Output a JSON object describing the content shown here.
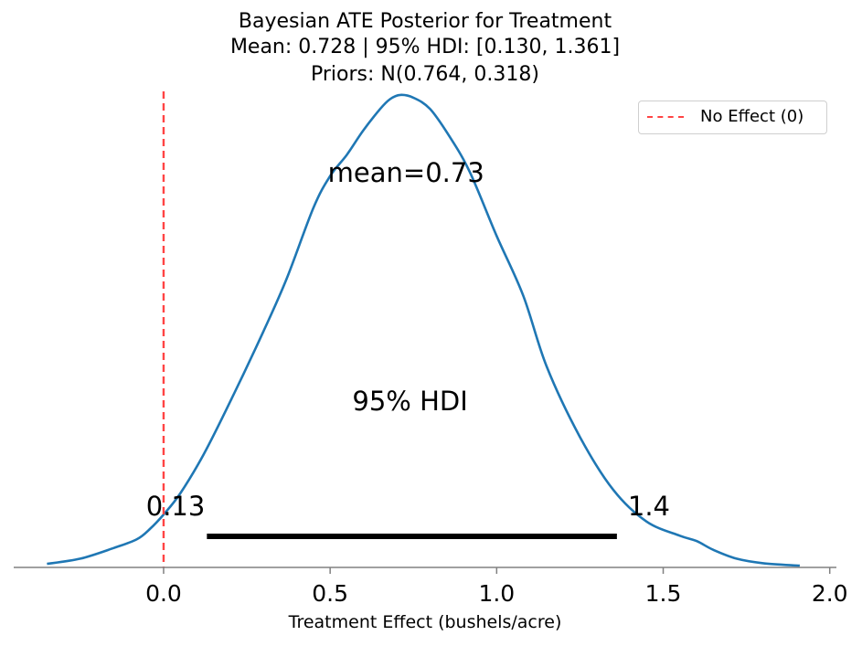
{
  "chart_data": {
    "type": "area",
    "title": [
      "Bayesian ATE Posterior for Treatment",
      "Mean: 0.728 | 95% HDI: [0.130, 1.361]",
      "Priors: N(0.764, 0.318)"
    ],
    "xlabel": "Treatment Effect (bushels/acre)",
    "ylabel": "",
    "xlim": [
      -0.45,
      2.02
    ],
    "ylim": [
      0,
      1.35
    ],
    "xticks": [
      0.0,
      0.5,
      1.0,
      1.5,
      2.0
    ],
    "xtick_labels": [
      "0.0",
      "0.5",
      "1.0",
      "1.5",
      "2.0"
    ],
    "yaxis_visible": false,
    "grid": false,
    "legend_position": "top-right",
    "legend": [
      {
        "label": "No Effect (0)",
        "color": "#ff4444",
        "style": "dashed"
      }
    ],
    "series": [
      {
        "color": "#1f77b4",
        "x": [
          -0.35,
          -0.25,
          -0.15,
          -0.08,
          -0.04,
          0.0,
          0.05,
          0.12,
          0.2,
          0.3,
          0.37,
          0.45,
          0.5,
          0.55,
          0.6,
          0.65,
          0.68,
          0.71,
          0.75,
          0.8,
          0.86,
          0.92,
          1.0,
          1.08,
          1.15,
          1.25,
          1.35,
          1.45,
          1.55,
          1.6,
          1.65,
          1.72,
          1.8,
          1.91
        ],
        "y": [
          0.01,
          0.025,
          0.055,
          0.08,
          0.11,
          0.15,
          0.21,
          0.32,
          0.47,
          0.67,
          0.82,
          1.02,
          1.11,
          1.17,
          1.24,
          1.3,
          1.328,
          1.34,
          1.332,
          1.3,
          1.22,
          1.12,
          0.94,
          0.77,
          0.57,
          0.37,
          0.22,
          0.13,
          0.09,
          0.075,
          0.05,
          0.025,
          0.012,
          0.005
        ]
      }
    ],
    "reference_line": {
      "x": 0,
      "label": "No Effect (0)",
      "color": "#ff4444"
    },
    "hdi": {
      "low": 0.13,
      "high": 1.361,
      "low_label": "0.13",
      "high_label": "1.4",
      "label": "95% HDI"
    },
    "mean_label": "mean=0.73"
  }
}
